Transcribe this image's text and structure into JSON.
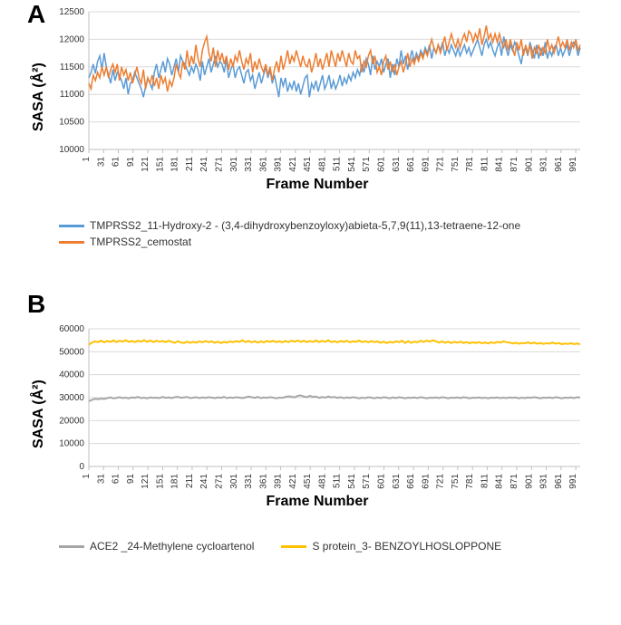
{
  "panelA": {
    "label": "A",
    "type": "line",
    "x_label": "Frame Number",
    "y_label": "SASA (Å²)",
    "label_fontsize": 16,
    "panel_label_fontsize": 28,
    "background_color": "#ffffff",
    "plot_border_color": "#bfbfbf",
    "grid_color": "#d9d9d9",
    "tick_font_size": 10,
    "x_ticks": [
      1,
      31,
      61,
      91,
      121,
      151,
      181,
      211,
      241,
      271,
      301,
      331,
      361,
      391,
      421,
      451,
      481,
      511,
      541,
      571,
      601,
      631,
      661,
      691,
      721,
      751,
      781,
      811,
      841,
      871,
      901,
      931,
      961,
      991
    ],
    "y_ticks": [
      10000,
      10500,
      11000,
      11500,
      12000,
      12500
    ],
    "xlim": [
      1,
      1000
    ],
    "ylim": [
      10000,
      12500
    ],
    "line_width": 1.5,
    "series": [
      {
        "name": "TMPRSS2_11-Hydroxy-2 - (3,4-dihydroxybenzoyloxy)abieta-5,7,9(11),13-tetraene-12-one",
        "color": "#5b9bd5",
        "values": [
          11300,
          11400,
          11550,
          11380,
          11600,
          11700,
          11450,
          11750,
          11500,
          11350,
          11200,
          11450,
          11250,
          11400,
          11350,
          11250,
          11100,
          11300,
          11000,
          11200,
          11250,
          11400,
          11300,
          11200,
          11100,
          10950,
          11150,
          11300,
          11200,
          11100,
          11400,
          11550,
          11300,
          11450,
          11600,
          11400,
          11650,
          11550,
          11350,
          11500,
          11650,
          11400,
          11700,
          11600,
          11550,
          11450,
          11350,
          11500,
          11400,
          11550,
          11450,
          11250,
          11600,
          11350,
          11500,
          11650,
          11400,
          11550,
          11700,
          11500,
          11600,
          11550,
          11400,
          11650,
          11300,
          11450,
          11550,
          11300,
          11450,
          11500,
          11350,
          11200,
          11400,
          11450,
          11250,
          11350,
          11100,
          11250,
          11400,
          11200,
          11350,
          11500,
          11300,
          11450,
          11200,
          11350,
          11150,
          10950,
          11300,
          11150,
          11300,
          11050,
          11200,
          11100,
          11250,
          11050,
          11200,
          11000,
          11150,
          11300,
          11350,
          10950,
          11200,
          11100,
          11250,
          11050,
          11200,
          11350,
          11100,
          11200,
          11350,
          11100,
          11250,
          11100,
          11200,
          11350,
          11150,
          11300,
          11200,
          11350,
          11250,
          11400,
          11300,
          11450,
          11350,
          11550,
          11400,
          11650,
          11550,
          11350,
          11700,
          11450,
          11600,
          11500,
          11650,
          11400,
          11550,
          11650,
          11300,
          11550,
          11350,
          11650,
          11500,
          11800,
          11550,
          11700,
          11450,
          11650,
          11800,
          11600,
          11750,
          11650,
          11800,
          11700,
          11850,
          11750,
          11900,
          11650,
          11850,
          11750,
          11900,
          11800,
          11950,
          11700,
          11850,
          11750,
          11900,
          11800,
          11700,
          11850,
          11700,
          11800,
          11900,
          11750,
          11850,
          11700,
          11800,
          11900,
          12000,
          11850,
          11700,
          11900,
          12000,
          11850,
          11950,
          11800,
          11700,
          11850,
          11950,
          11700,
          12050,
          11850,
          11700,
          11900,
          11800,
          11950,
          11850,
          11700,
          11550,
          11800,
          11850,
          11700,
          11950,
          11800,
          11650,
          11900,
          11650,
          11850,
          11700,
          11950,
          11650,
          11800,
          11700,
          11850,
          11900,
          11700,
          11850,
          11700,
          11800,
          11900,
          11700,
          11850,
          11950,
          11900,
          11700,
          11850
        ]
      },
      {
        "name": "TMPRSS2_cemostat",
        "color": "#ed7d31",
        "values": [
          11200,
          11100,
          11350,
          11250,
          11400,
          11300,
          11500,
          11350,
          11500,
          11300,
          11450,
          11550,
          11400,
          11550,
          11250,
          11500,
          11350,
          11450,
          11250,
          11400,
          11200,
          11350,
          11500,
          11300,
          11200,
          11450,
          11100,
          11300,
          11200,
          11350,
          11150,
          11300,
          11100,
          11350,
          11200,
          11300,
          11050,
          11250,
          11150,
          11300,
          11550,
          11400,
          11300,
          11600,
          11450,
          11800,
          11500,
          11700,
          11550,
          11900,
          11650,
          11500,
          11800,
          11950,
          12050,
          11750,
          11600,
          11850,
          11500,
          11800,
          11600,
          11750,
          11550,
          11700,
          11450,
          11650,
          11500,
          11700,
          11600,
          11800,
          11600,
          11450,
          11650,
          11550,
          11750,
          11400,
          11600,
          11450,
          11650,
          11500,
          11400,
          11550,
          11350,
          11500,
          11250,
          11450,
          11600,
          11400,
          11700,
          11450,
          11600,
          11800,
          11550,
          11700,
          11600,
          11800,
          11650,
          11500,
          11700,
          11550,
          11500,
          11650,
          11400,
          11550,
          11750,
          11500,
          11650,
          11450,
          11600,
          11750,
          11500,
          11800,
          11650,
          11500,
          11750,
          11600,
          11800,
          11650,
          11500,
          11750,
          11600,
          11550,
          11800,
          11650,
          11700,
          11400,
          11600,
          11500,
          11700,
          11800,
          11550,
          11700,
          11400,
          11500,
          11350,
          11600,
          11700,
          11450,
          11600,
          11400,
          11550,
          11350,
          11500,
          11600,
          11400,
          11550,
          11750,
          11500,
          11650,
          11550,
          11700,
          11600,
          11750,
          11650,
          11800,
          11700,
          11850,
          12000,
          11850,
          11750,
          11900,
          11750,
          11900,
          12050,
          11800,
          11950,
          12100,
          11950,
          11850,
          12000,
          11850,
          12000,
          12100,
          11950,
          12150,
          12100,
          11950,
          12100,
          12000,
          12200,
          11900,
          12050,
          12250,
          12000,
          12100,
          11950,
          12100,
          11950,
          12100,
          11950,
          11850,
          12000,
          11800,
          12000,
          11850,
          11700,
          11950,
          11800,
          12000,
          11700,
          11900,
          11750,
          11900,
          11650,
          11850,
          11750,
          11900,
          11700,
          11850,
          11750,
          12000,
          11800,
          11900,
          11750,
          11900,
          12050,
          11850,
          11950,
          11850,
          12000,
          11800,
          11950,
          11850,
          12000,
          11800,
          11900
        ]
      }
    ]
  },
  "panelB": {
    "label": "B",
    "type": "line",
    "x_label": "Frame Number",
    "y_label": "SASA (Å²)",
    "label_fontsize": 16,
    "panel_label_fontsize": 28,
    "background_color": "#ffffff",
    "plot_border_color": "#bfbfbf",
    "grid_color": "#d9d9d9",
    "tick_font_size": 10,
    "x_ticks": [
      1,
      31,
      61,
      91,
      121,
      151,
      181,
      211,
      241,
      271,
      301,
      331,
      361,
      391,
      421,
      451,
      481,
      511,
      541,
      571,
      601,
      631,
      661,
      691,
      721,
      751,
      781,
      811,
      841,
      871,
      901,
      931,
      961,
      991
    ],
    "y_ticks": [
      0,
      10000,
      20000,
      30000,
      40000,
      50000,
      60000
    ],
    "xlim": [
      1,
      1000
    ],
    "ylim": [
      0,
      60000
    ],
    "line_width": 2.0,
    "series": [
      {
        "name": "ACE2 _24-Methylene cycloartenol",
        "color": "#a6a6a6",
        "values": [
          28500,
          29000,
          29500,
          29300,
          29600,
          29400,
          29800,
          30100,
          29700,
          29900,
          30200,
          29800,
          30000,
          29700,
          30100,
          29900,
          30300,
          29800,
          30000,
          29700,
          30100,
          29900,
          30000,
          29800,
          30300,
          29900,
          30100,
          29800,
          30200,
          30400,
          29900,
          30100,
          30300,
          29800,
          30000,
          30200,
          29800,
          30100,
          29900,
          30200,
          30000,
          29800,
          30100,
          29900,
          30300,
          29800,
          30100,
          29900,
          30200,
          30000,
          29800,
          30100,
          30500,
          30200,
          29900,
          30300,
          29800,
          30100,
          29900,
          30200,
          30000,
          29700,
          30000,
          29900,
          30300,
          30600,
          30400,
          30100,
          30800,
          31000,
          30500,
          30200,
          30800,
          30300,
          30500,
          29900,
          30300,
          30000,
          30500,
          30100,
          30300,
          29900,
          30200,
          29800,
          30100,
          29900,
          30200,
          30000,
          29700,
          30000,
          29800,
          30200,
          30000,
          29700,
          30100,
          29800,
          30200,
          30000,
          29700,
          30100,
          29800,
          30200,
          30000,
          29700,
          30000,
          29900,
          30100,
          29800,
          30200,
          30000,
          29700,
          30000,
          29900,
          30100,
          29800,
          30200,
          30000,
          29700,
          30000,
          29900,
          30100,
          29800,
          30200,
          30000,
          29700,
          30000,
          29900,
          30100,
          29800,
          30000,
          29700,
          30000,
          29900,
          30100,
          29800,
          30000,
          29800,
          30100,
          29900,
          30100,
          29700,
          30000,
          29800,
          30100,
          29900,
          30200,
          30000,
          29700,
          30000,
          29900,
          30100,
          29800,
          30200,
          30000,
          29700,
          30000,
          29900,
          30100,
          29800,
          30200,
          30000
        ]
      },
      {
        "name": "S protein_3- BENZOYLHOSLOPPONE",
        "color": "#ffc000",
        "values": [
          53000,
          54000,
          54500,
          54200,
          54800,
          54100,
          54700,
          54300,
          54900,
          54200,
          54800,
          54400,
          55000,
          54300,
          54700,
          54200,
          54800,
          54400,
          55000,
          54300,
          54900,
          54200,
          54800,
          54400,
          54700,
          54200,
          54800,
          54300,
          53900,
          54600,
          54000,
          53800,
          54400,
          53900,
          54300,
          54000,
          54500,
          54100,
          54700,
          54200,
          54500,
          53900,
          54400,
          53800,
          54300,
          54000,
          54500,
          54200,
          54600,
          54300,
          55000,
          54200,
          54700,
          54100,
          54600,
          54000,
          54500,
          54100,
          54700,
          54300,
          54800,
          54200,
          54600,
          54100,
          54700,
          54200,
          54800,
          54400,
          54900,
          54300,
          54800,
          54200,
          54700,
          54300,
          54900,
          54200,
          54800,
          54300,
          55000,
          54200,
          54600,
          54100,
          54700,
          54300,
          54800,
          54100,
          54600,
          54300,
          54900,
          54200,
          54600,
          54100,
          54700,
          54200,
          54500,
          53900,
          54400,
          53800,
          54300,
          54000,
          54500,
          54200,
          54800,
          53800,
          54600,
          53900,
          54400,
          54100,
          54800,
          54300,
          54900,
          54400,
          55000,
          54600,
          54000,
          54500,
          53900,
          54400,
          53800,
          54300,
          54000,
          54400,
          53800,
          54200,
          53700,
          54100,
          53800,
          54200,
          53700,
          54000,
          53600,
          54100,
          53800,
          54300,
          54000,
          54500,
          54200,
          54000,
          53600,
          53900,
          53500,
          53800,
          53700,
          54100,
          53600,
          54000,
          53500,
          53800,
          53400,
          53700,
          53600,
          54000,
          53500,
          53800,
          53300,
          53600,
          53400,
          53700,
          53300,
          53600,
          53200
        ]
      }
    ]
  }
}
